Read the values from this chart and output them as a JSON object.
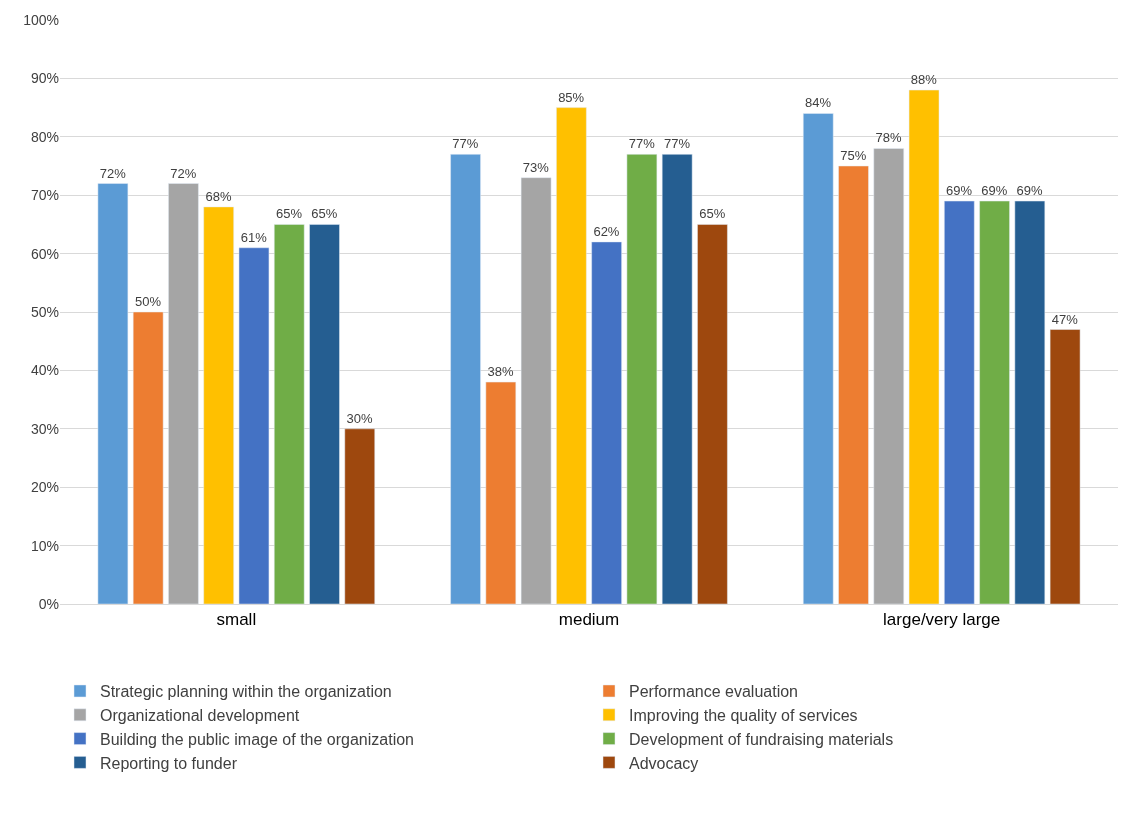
{
  "chart_data": {
    "type": "bar",
    "categories": [
      "small",
      "medium",
      "large/very large"
    ],
    "ylim": [
      0,
      100
    ],
    "yticks": [
      {
        "value": 0,
        "label": "0%"
      },
      {
        "value": 10,
        "label": "10%"
      },
      {
        "value": 20,
        "label": "20%"
      },
      {
        "value": 30,
        "label": "30%"
      },
      {
        "value": 40,
        "label": "40%"
      },
      {
        "value": 50,
        "label": "50%"
      },
      {
        "value": 60,
        "label": "60%"
      },
      {
        "value": 70,
        "label": "70%"
      },
      {
        "value": 80,
        "label": "80%"
      },
      {
        "value": 90,
        "label": "90%"
      },
      {
        "value": 100,
        "label": "100%"
      }
    ],
    "grid": "y",
    "legend": "bottom",
    "series": [
      {
        "name": "Strategic planning within the organization",
        "color": "#5b9bd5",
        "values": [
          72,
          77,
          84
        ],
        "value_labels": [
          "72%",
          "77%",
          "84%"
        ]
      },
      {
        "name": "Performance evaluation",
        "color": "#ed7d31",
        "values": [
          50,
          38,
          75
        ],
        "value_labels": [
          "50%",
          "38%",
          "75%"
        ]
      },
      {
        "name": "Organizational development",
        "color": "#a5a5a5",
        "values": [
          72,
          73,
          78
        ],
        "value_labels": [
          "72%",
          "73%",
          "78%"
        ]
      },
      {
        "name": "Improving the quality of services",
        "color": "#ffc000",
        "values": [
          68,
          85,
          88
        ],
        "value_labels": [
          "68%",
          "85%",
          "88%"
        ]
      },
      {
        "name": "Building the public image of the organization",
        "color": "#4472c4",
        "values": [
          61,
          62,
          69
        ],
        "value_labels": [
          "61%",
          "62%",
          "69%"
        ]
      },
      {
        "name": "Development of fundraising materials",
        "color": "#70ad47",
        "values": [
          65,
          77,
          69
        ],
        "value_labels": [
          "65%",
          "77%",
          "69%"
        ]
      },
      {
        "name": "Reporting to funder",
        "color": "#255e91",
        "values": [
          65,
          77,
          69
        ],
        "value_labels": [
          "65%",
          "77%",
          "69%"
        ]
      },
      {
        "name": "Advocacy",
        "color": "#9e480e",
        "values": [
          30,
          65,
          47
        ],
        "value_labels": [
          "30%",
          "65%",
          "47%"
        ]
      }
    ]
  }
}
